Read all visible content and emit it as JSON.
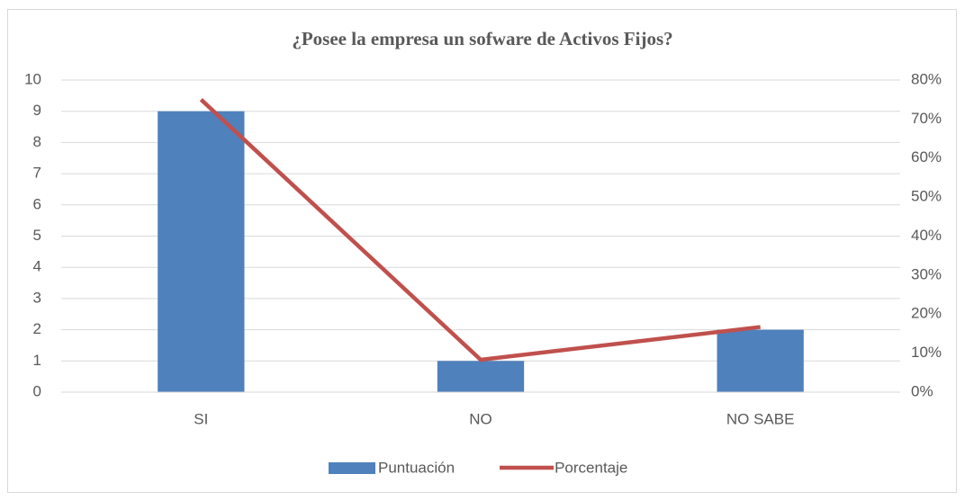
{
  "chart_data": {
    "type": "combo",
    "title": "¿Posee la empresa un sofware de Activos Fijos?",
    "categories": [
      "SI",
      "NO",
      "NO SABE"
    ],
    "series": [
      {
        "name": "Puntuación",
        "type": "bar",
        "color": "#4f81bd",
        "values": [
          9,
          1,
          2
        ]
      },
      {
        "name": "Porcentaje",
        "type": "line",
        "axis": "y2",
        "color": "#c0504d",
        "values": [
          75,
          8.3,
          16.7
        ]
      }
    ],
    "ylim": [
      0,
      10
    ],
    "yticks": [
      0,
      1,
      2,
      3,
      4,
      5,
      6,
      7,
      8,
      9,
      10
    ],
    "y2lim": [
      0,
      80
    ],
    "y2ticks": [
      {
        "value": 0,
        "label": "0%"
      },
      {
        "value": 10,
        "label": "10%"
      },
      {
        "value": 20,
        "label": "20%"
      },
      {
        "value": 30,
        "label": "30%"
      },
      {
        "value": 40,
        "label": "40%"
      },
      {
        "value": 50,
        "label": "50%"
      },
      {
        "value": 60,
        "label": "60%"
      },
      {
        "value": 70,
        "label": "70%"
      },
      {
        "value": 80,
        "label": "80%"
      }
    ],
    "grid": true,
    "legend": "bottom"
  }
}
